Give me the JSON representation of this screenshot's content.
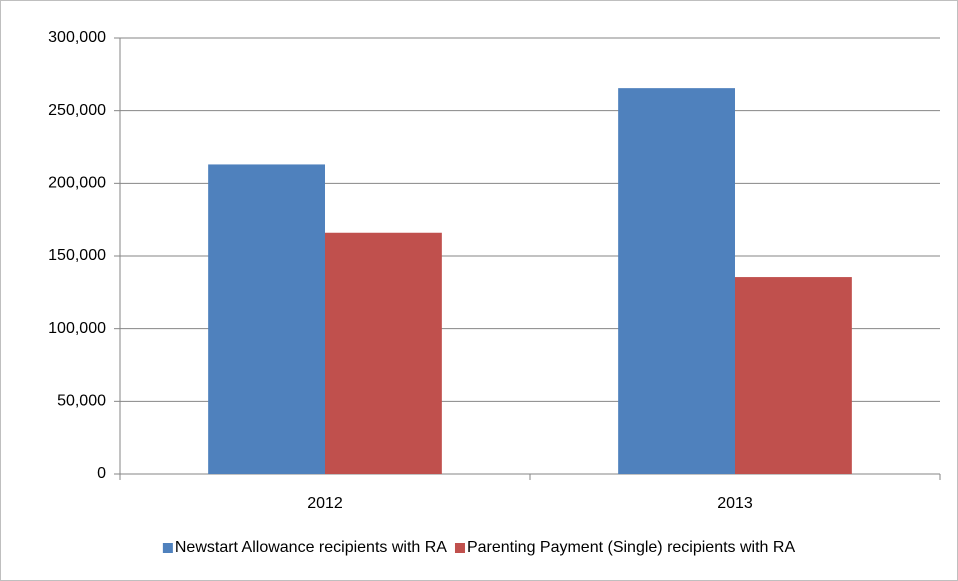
{
  "chart_data": {
    "type": "bar",
    "categories": [
      "2012",
      "2013"
    ],
    "series": [
      {
        "name": "Newstart Allowance recipients with RA",
        "color": "#4f81bd",
        "values": [
          213000,
          265500
        ]
      },
      {
        "name": "Parenting Payment (Single) recipients with RA",
        "color": "#c0504d",
        "values": [
          166000,
          135500
        ]
      }
    ],
    "ylim": [
      0,
      300000
    ],
    "yticks": [
      0,
      {
        "value": 50000,
        "label": "50,000"
      },
      {
        "value": 100000,
        "label": "100,000"
      },
      {
        "value": 150000,
        "label": "150,000"
      },
      {
        "value": 200000,
        "label": "200,000"
      },
      {
        "value": 250000,
        "label": "250,000"
      },
      {
        "value": 300000,
        "label": "300,000"
      }
    ],
    "grid": true,
    "legend": "bottom"
  }
}
